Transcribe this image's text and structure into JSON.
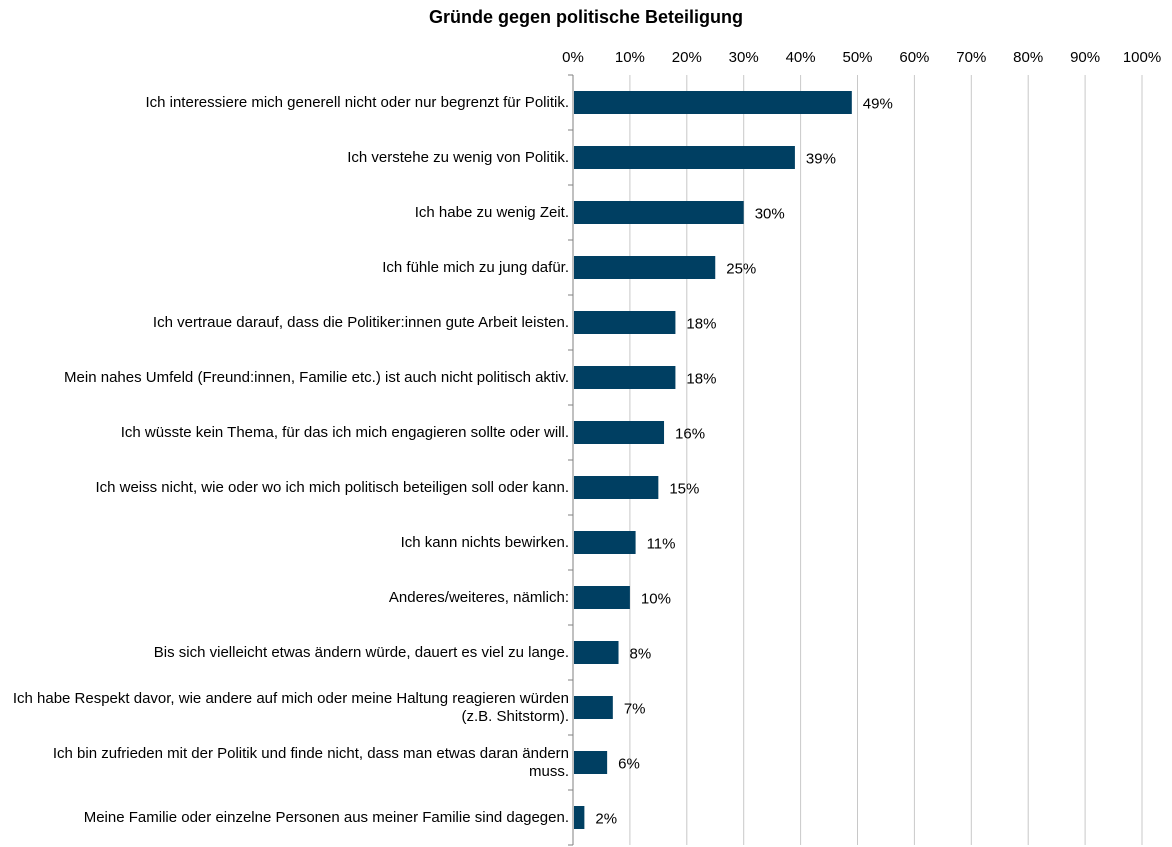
{
  "chart_data": {
    "type": "bar",
    "orientation": "horizontal",
    "title": "Gründe gegen politische Beteiligung",
    "xlim": [
      0,
      100
    ],
    "x_ticks": [
      "0%",
      "10%",
      "20%",
      "30%",
      "40%",
      "50%",
      "60%",
      "70%",
      "80%",
      "90%",
      "100%"
    ],
    "x_tick_values": [
      0,
      10,
      20,
      30,
      40,
      50,
      60,
      70,
      80,
      90,
      100
    ],
    "grid": true,
    "bar_color": "#003f62",
    "categories": [
      "Ich interessiere mich generell nicht oder nur begrenzt für Politik.",
      "Ich verstehe zu wenig von Politik.",
      "Ich habe zu wenig Zeit.",
      "Ich fühle mich zu jung dafür.",
      "Ich vertraue darauf, dass die Politiker:innen gute Arbeit leisten.",
      "Mein nahes Umfeld (Freund:innen, Familie etc.) ist auch nicht politisch aktiv.",
      "Ich wüsste kein Thema, für das ich mich engagieren sollte oder will.",
      "Ich weiss nicht, wie oder wo ich mich politisch beteiligen soll oder kann.",
      "Ich kann nichts bewirken.",
      "Anderes/weiteres, nämlich:",
      "Bis sich vielleicht etwas ändern würde, dauert es viel zu lange.",
      "Ich habe Respekt davor, wie andere auf mich oder meine Haltung reagieren würden (z.B. Shitstorm).",
      "Ich bin zufrieden mit der Politik und finde nicht, dass man etwas daran ändern muss.",
      "Meine Familie oder einzelne Personen aus meiner Familie sind dagegen."
    ],
    "values": [
      49,
      39,
      30,
      25,
      18,
      18,
      16,
      15,
      11,
      10,
      8,
      7,
      6,
      2
    ],
    "data_labels": [
      "49%",
      "39%",
      "30%",
      "25%",
      "18%",
      "18%",
      "16%",
      "15%",
      "11%",
      "10%",
      "8%",
      "7%",
      "6%",
      "2%"
    ]
  }
}
